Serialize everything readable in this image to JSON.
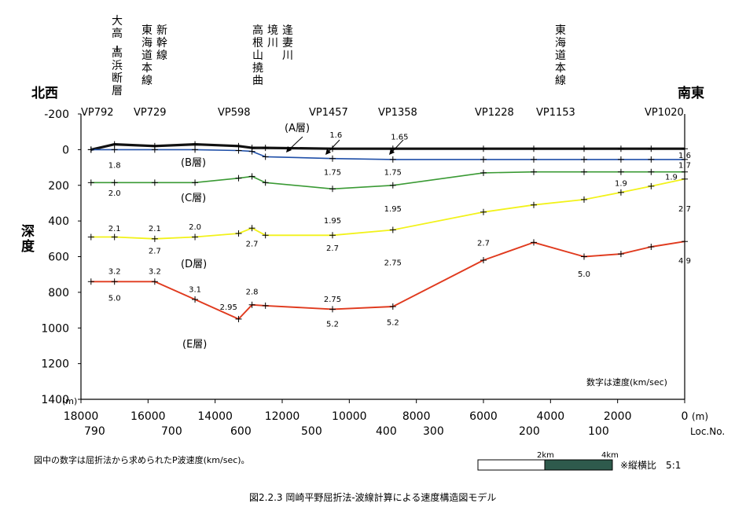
{
  "chart_data": {
    "type": "line",
    "caption": "図2.2.3 岡崎平野屈折法-波線計算による速度構造図モデル",
    "note": "図中の数字は屈折法から求められたP波速度(km/sec)。",
    "legend_speed": "数字は速度(km/sec)",
    "scale_bar": {
      "label_2": "2km",
      "label_4": "4km",
      "ratio": "※縦横比　5:1"
    },
    "direction_left": "北西",
    "direction_right": "南東",
    "ylabel": "深度",
    "y_unit": "(m)",
    "x_unit": "(m)",
    "loc_label": "Loc.No.",
    "ylim": [
      -200,
      1400
    ],
    "xlim": [
      18000,
      0
    ],
    "y_ticks": [
      "-200",
      "0",
      "200",
      "400",
      "600",
      "800",
      "1000",
      "1200",
      "1400"
    ],
    "x_ticks": [
      "18000",
      "16000",
      "14000",
      "12000",
      "10000",
      "8000",
      "6000",
      "4000",
      "2000",
      "0"
    ],
    "loc_ticks": [
      "790",
      "700",
      "600",
      "500",
      "400",
      "300",
      "200",
      "100"
    ],
    "vp_labels": [
      "VP792",
      "VP729",
      "VP598",
      "VP1457",
      "VP1358",
      "VP1228",
      "VP1153",
      "VP1020"
    ],
    "structures": [
      {
        "lines": [
          "大高",
          "―",
          "高浜断層"
        ]
      },
      {
        "lines": [
          "東海道本線",
          "新幹線"
        ]
      },
      {
        "lines": [
          "高根山撓曲",
          "境川",
          "逢妻川"
        ]
      },
      {
        "lines": [
          "東海道本線"
        ]
      }
    ],
    "layer_names": [
      "(A層)",
      "(B層)",
      "(C層)",
      "(D層)",
      "(E層)"
    ],
    "series": [
      {
        "color": "#111111",
        "width": 3.2,
        "x": [
          17700,
          17000,
          15800,
          14600,
          13300,
          12900,
          12500,
          10500,
          8700,
          6000,
          4500,
          3000,
          1900,
          1000,
          0
        ],
        "y": [
          0,
          -30,
          -20,
          -30,
          -20,
          -10,
          -10,
          -5,
          -5,
          -5,
          -5,
          -5,
          -5,
          -5,
          -5
        ]
      },
      {
        "color": "#1f4fa8",
        "width": 1.6,
        "x": [
          17700,
          17000,
          15800,
          14600,
          13300,
          12900,
          12500,
          10500,
          8700,
          6000,
          4500,
          3000,
          1900,
          1000,
          0
        ],
        "y": [
          0,
          0,
          0,
          0,
          5,
          10,
          40,
          50,
          55,
          55,
          55,
          55,
          55,
          55,
          55
        ]
      },
      {
        "color": "#3a9a34",
        "width": 1.6,
        "x": [
          17700,
          17000,
          15800,
          14600,
          13300,
          12900,
          12500,
          10500,
          8700,
          6000,
          4500,
          3000,
          1900,
          1000,
          0
        ],
        "y": [
          185,
          185,
          185,
          185,
          160,
          150,
          185,
          220,
          200,
          130,
          125,
          125,
          125,
          125,
          125
        ]
      },
      {
        "color": "#f2f21a",
        "width": 1.8,
        "x": [
          17700,
          17000,
          15800,
          14600,
          13300,
          12900,
          12500,
          10500,
          8700,
          6000,
          4500,
          3000,
          1900,
          1000,
          0
        ],
        "y": [
          490,
          490,
          500,
          490,
          470,
          440,
          480,
          480,
          450,
          350,
          310,
          280,
          240,
          205,
          165
        ]
      },
      {
        "color": "#e03a1e",
        "width": 1.9,
        "x": [
          17700,
          17000,
          15800,
          14600,
          13300,
          12900,
          12500,
          10500,
          8700,
          6000,
          4500,
          3000,
          1900,
          1000,
          0
        ],
        "y": [
          740,
          740,
          740,
          840,
          950,
          870,
          875,
          895,
          880,
          620,
          520,
          600,
          585,
          545,
          515
        ]
      }
    ],
    "velocity_labels": [
      {
        "text": "1.6",
        "x": 10400,
        "y": -85
      },
      {
        "text": "1.65",
        "x": 8500,
        "y": -75
      },
      {
        "text": "1.8",
        "x": 17000,
        "y": 85
      },
      {
        "text": "1.75",
        "x": 10500,
        "y": 125
      },
      {
        "text": "1.75",
        "x": 8700,
        "y": 125
      },
      {
        "text": "1.6",
        "x": 0,
        "y": 30
      },
      {
        "text": "1.7",
        "x": 0,
        "y": 85
      },
      {
        "text": "1.9",
        "x": 1900,
        "y": 185
      },
      {
        "text": "1.9",
        "x": 400,
        "y": 150
      },
      {
        "text": "2.0",
        "x": 17000,
        "y": 240
      },
      {
        "text": "2.1",
        "x": 17000,
        "y": 440
      },
      {
        "text": "2.1",
        "x": 15800,
        "y": 440
      },
      {
        "text": "2.0",
        "x": 14600,
        "y": 430
      },
      {
        "text": "1.95",
        "x": 10500,
        "y": 395
      },
      {
        "text": "1.95",
        "x": 8700,
        "y": 330
      },
      {
        "text": "2.7",
        "x": 0,
        "y": 330
      },
      {
        "text": "2.7",
        "x": 15800,
        "y": 565
      },
      {
        "text": "2.7",
        "x": 12900,
        "y": 525
      },
      {
        "text": "2.7",
        "x": 10500,
        "y": 550
      },
      {
        "text": "2.7",
        "x": 6000,
        "y": 520
      },
      {
        "text": "2.75",
        "x": 8700,
        "y": 630
      },
      {
        "text": "3.2",
        "x": 17000,
        "y": 680
      },
      {
        "text": "3.2",
        "x": 15800,
        "y": 680
      },
      {
        "text": "3.1",
        "x": 14600,
        "y": 780
      },
      {
        "text": "2.8",
        "x": 12900,
        "y": 795
      },
      {
        "text": "2.95",
        "x": 13600,
        "y": 880
      },
      {
        "text": "2.75",
        "x": 10500,
        "y": 835
      },
      {
        "text": "5.0",
        "x": 17000,
        "y": 830
      },
      {
        "text": "5.2",
        "x": 10500,
        "y": 975
      },
      {
        "text": "5.2",
        "x": 8700,
        "y": 965
      },
      {
        "text": "5.0",
        "x": 3000,
        "y": 695
      },
      {
        "text": "4.9",
        "x": 0,
        "y": 620
      }
    ]
  }
}
